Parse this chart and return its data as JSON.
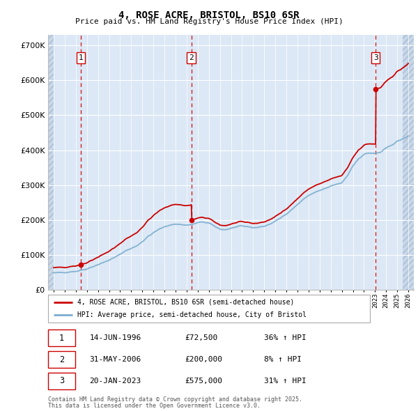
{
  "title": "4, ROSE ACRE, BRISTOL, BS10 6SR",
  "subtitle": "Price paid vs. HM Land Registry's House Price Index (HPI)",
  "legend_line1": "4, ROSE ACRE, BRISTOL, BS10 6SR (semi-detached house)",
  "legend_line2": "HPI: Average price, semi-detached house, City of Bristol",
  "footer1": "Contains HM Land Registry data © Crown copyright and database right 2025.",
  "footer2": "This data is licensed under the Open Government Licence v3.0.",
  "sales": [
    {
      "num": 1,
      "date_str": "14-JUN-1996",
      "price": 72500,
      "hpi_diff": "36% ↑ HPI",
      "x": 1996.45
    },
    {
      "num": 2,
      "date_str": "31-MAY-2006",
      "price": 200000,
      "hpi_diff": "8% ↑ HPI",
      "x": 2006.42
    },
    {
      "num": 3,
      "date_str": "20-JAN-2023",
      "price": 575000,
      "hpi_diff": "31% ↑ HPI",
      "x": 2023.05
    }
  ],
  "red_line_color": "#cc0000",
  "blue_line_color": "#7aadcf",
  "dashed_line_color": "#cc0000",
  "bg_color": "#dce8f5",
  "bg_hatch_color": "#c8d8ea",
  "grid_color": "#ffffff",
  "xlim": [
    1993.5,
    2026.5
  ],
  "ylim": [
    0,
    730000
  ],
  "yticks": [
    0,
    100000,
    200000,
    300000,
    400000,
    500000,
    600000,
    700000
  ],
  "xtick_years": [
    1994,
    1995,
    1996,
    1997,
    1998,
    1999,
    2000,
    2001,
    2002,
    2003,
    2004,
    2005,
    2006,
    2007,
    2008,
    2009,
    2010,
    2011,
    2012,
    2013,
    2014,
    2015,
    2016,
    2017,
    2018,
    2019,
    2020,
    2021,
    2022,
    2023,
    2024,
    2025,
    2026
  ]
}
